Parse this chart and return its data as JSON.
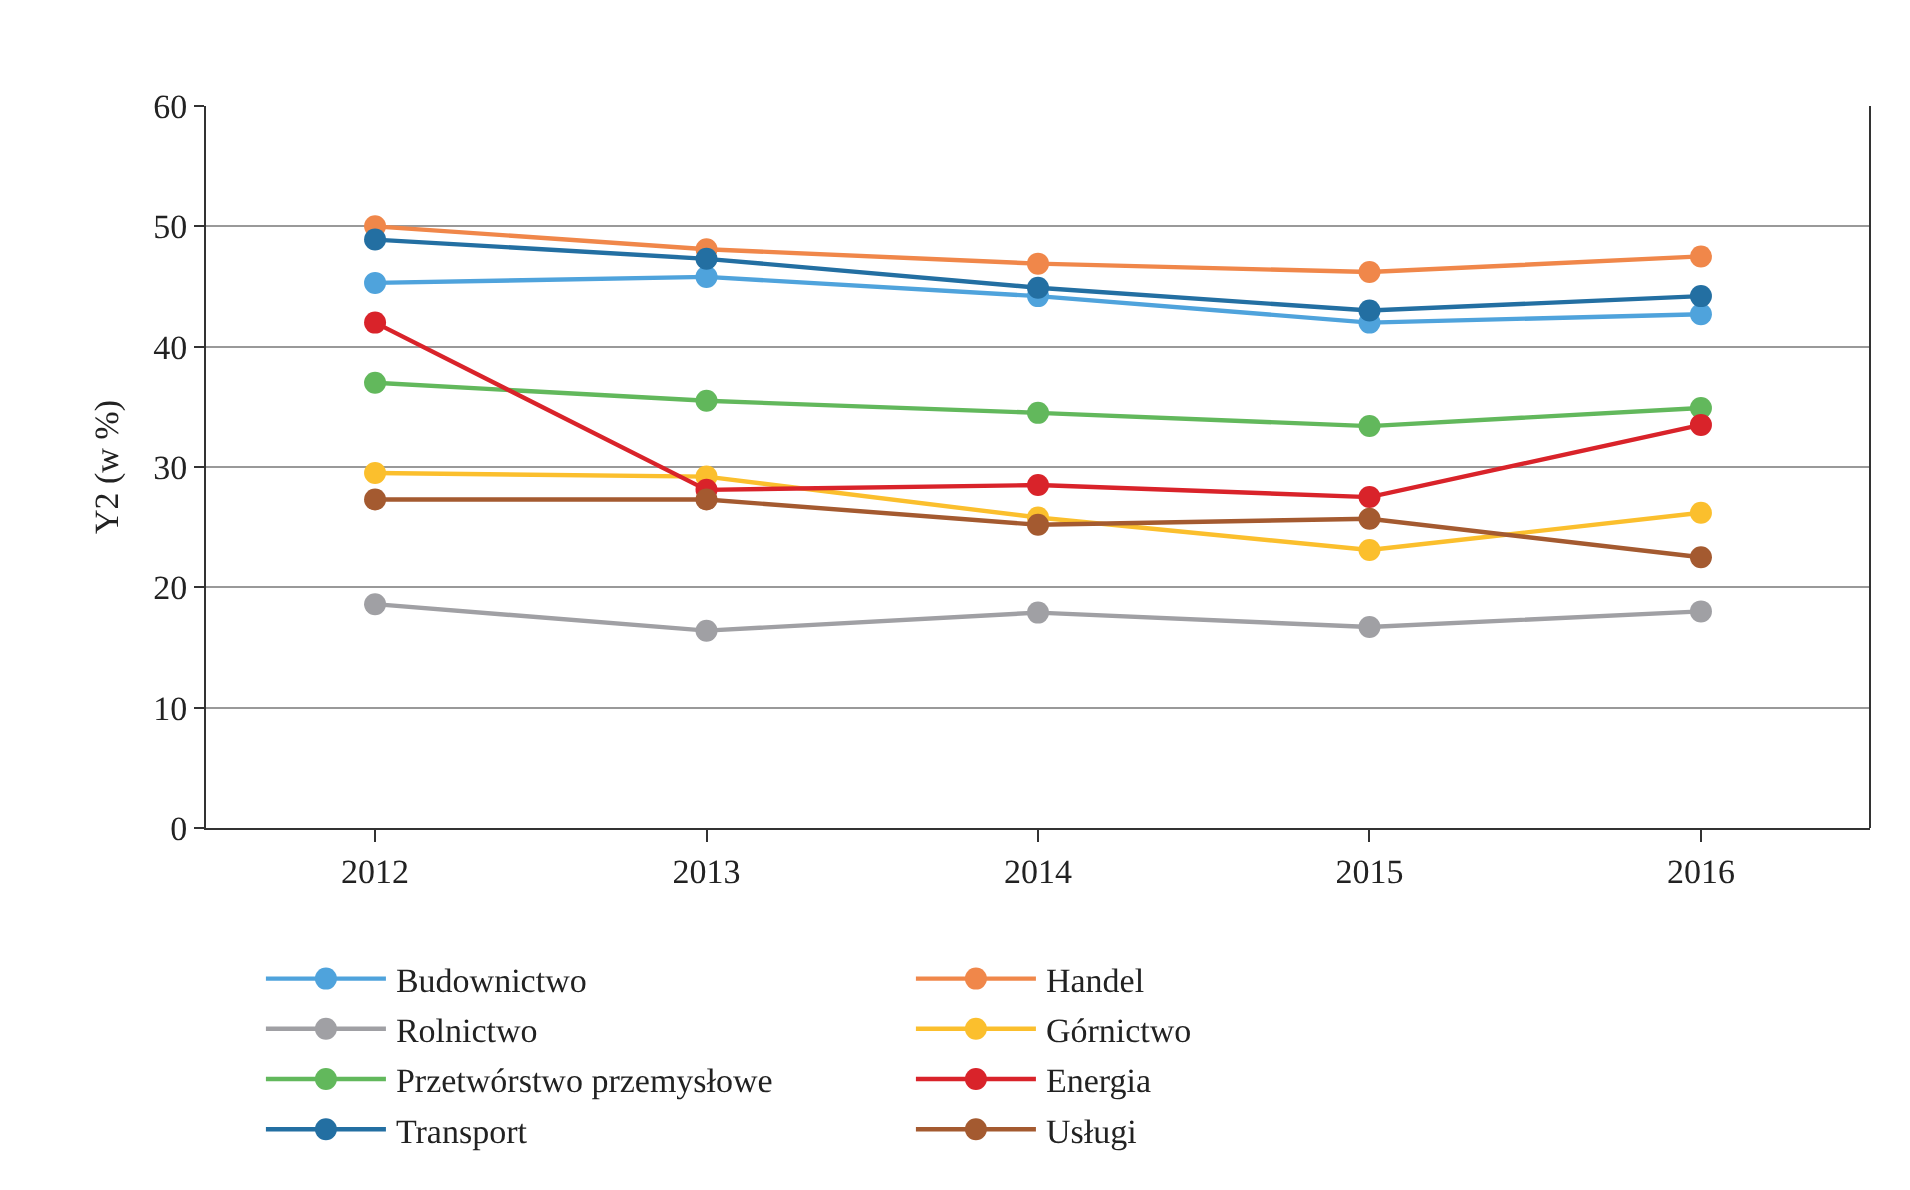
{
  "chart_data": {
    "type": "line",
    "ylabel": "Y2 (w %)",
    "categories": [
      "2012",
      "2013",
      "2014",
      "2015",
      "2016"
    ],
    "ylim": [
      0,
      60
    ],
    "yticks": [
      0,
      10,
      20,
      30,
      40,
      50,
      60
    ],
    "grid": "y",
    "legend": "bottom",
    "marker": "circle",
    "line_style": "solid",
    "series": [
      {
        "name": "Budownictwo",
        "color": "#4fa3dc",
        "values": [
          45.3,
          45.8,
          44.2,
          42.0,
          42.7
        ]
      },
      {
        "name": "Handel",
        "color": "#f0874a",
        "values": [
          50.0,
          48.1,
          46.9,
          46.2,
          47.5
        ]
      },
      {
        "name": "Rolnictwo",
        "color": "#a0a0a4",
        "values": [
          18.6,
          16.4,
          17.9,
          16.7,
          18.0
        ]
      },
      {
        "name": "Górnictwo",
        "color": "#fbbf2d",
        "values": [
          29.5,
          29.2,
          25.8,
          23.1,
          26.2
        ]
      },
      {
        "name": "Przetwórstwo przemysłowe",
        "color": "#62b85c",
        "values": [
          37.0,
          35.5,
          34.5,
          33.4,
          34.9
        ]
      },
      {
        "name": "Energia",
        "color": "#d9232a",
        "values": [
          42.0,
          28.1,
          28.5,
          27.5,
          33.5
        ]
      },
      {
        "name": "Transport",
        "color": "#236fa2",
        "values": [
          48.9,
          47.3,
          44.9,
          43.0,
          44.2
        ]
      },
      {
        "name": "Usługi",
        "color": "#a45a30",
        "values": [
          27.3,
          27.3,
          25.2,
          25.7,
          22.5
        ]
      }
    ]
  }
}
